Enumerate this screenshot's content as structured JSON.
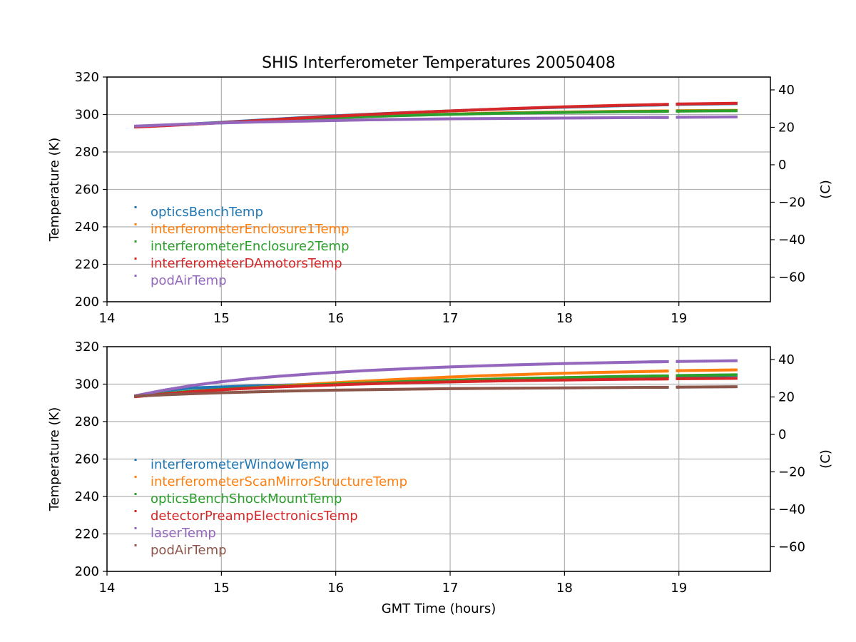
{
  "figure": {
    "title": "SHIS Interferometer Temperatures 20050408"
  },
  "chart_data": [
    {
      "type": "scatter",
      "title": "SHIS Interferometer Temperatures 20050408",
      "xlabel": "",
      "ylabel": "Temperature (K)",
      "y2label": "(C)",
      "xlim": [
        14,
        19.8
      ],
      "ylim": [
        200,
        320
      ],
      "y2lim": [
        -73.15,
        46.85
      ],
      "xticks": [
        14,
        15,
        16,
        17,
        18,
        19
      ],
      "yticks": [
        200,
        220,
        240,
        260,
        280,
        300,
        320
      ],
      "y2ticks": [
        -60,
        -40,
        -20,
        0,
        20,
        40
      ],
      "grid": true,
      "legend_position": "lower-left",
      "gap": [
        18.9,
        18.98
      ],
      "x": [
        14.25,
        14.5,
        14.75,
        15.0,
        15.25,
        15.5,
        15.75,
        16.0,
        16.25,
        16.5,
        16.75,
        17.0,
        17.25,
        17.5,
        17.75,
        18.0,
        18.25,
        18.5,
        18.75,
        18.9,
        19.0,
        19.25,
        19.5
      ],
      "series": [
        {
          "name": "opticsBenchTemp",
          "color": "#1f77b4",
          "values": [
            293.5,
            294.2,
            295.0,
            295.8,
            296.7,
            297.6,
            298.5,
            299.3,
            300.0,
            300.7,
            301.3,
            301.9,
            302.5,
            303.0,
            303.5,
            303.9,
            304.3,
            304.7,
            305.0,
            305.2,
            305.4,
            305.6,
            305.8
          ]
        },
        {
          "name": "interferometerEnclosure1Temp",
          "color": "#ff7f0e",
          "values": [
            293.5,
            294.2,
            294.9,
            295.6,
            296.3,
            297.0,
            297.7,
            298.3,
            298.9,
            299.4,
            299.8,
            300.2,
            300.6,
            300.9,
            301.1,
            301.3,
            301.5,
            301.7,
            301.8,
            301.9,
            302.0,
            302.1,
            302.2
          ]
        },
        {
          "name": "interferometerEnclosure2Temp",
          "color": "#2ca02c",
          "values": [
            293.5,
            294.2,
            294.9,
            295.6,
            296.3,
            297.0,
            297.6,
            298.2,
            298.8,
            299.3,
            299.7,
            300.1,
            300.4,
            300.7,
            300.9,
            301.1,
            301.3,
            301.5,
            301.6,
            301.7,
            301.8,
            301.9,
            302.0
          ]
        },
        {
          "name": "interferometerDAmotorsTemp",
          "color": "#d62728",
          "values": [
            293.3,
            294.0,
            294.8,
            295.6,
            296.5,
            297.4,
            298.3,
            299.1,
            299.9,
            300.6,
            301.3,
            301.9,
            302.5,
            303.1,
            303.6,
            304.1,
            304.5,
            304.9,
            305.2,
            305.4,
            305.6,
            305.8,
            306.0
          ]
        },
        {
          "name": "podAirTemp",
          "color": "#9467bd",
          "values": [
            293.8,
            294.4,
            295.0,
            295.5,
            295.9,
            296.2,
            296.5,
            296.8,
            297.1,
            297.3,
            297.5,
            297.7,
            297.8,
            297.9,
            298.0,
            298.1,
            298.2,
            298.3,
            298.4,
            298.4,
            298.5,
            298.6,
            298.7
          ]
        }
      ]
    },
    {
      "type": "scatter",
      "title": "",
      "xlabel": "GMT Time (hours)",
      "ylabel": "Temperature (K)",
      "y2label": "(C)",
      "xlim": [
        14,
        19.8
      ],
      "ylim": [
        200,
        320
      ],
      "y2lim": [
        -73.15,
        46.85
      ],
      "xticks": [
        14,
        15,
        16,
        17,
        18,
        19
      ],
      "yticks": [
        200,
        220,
        240,
        260,
        280,
        300,
        320
      ],
      "y2ticks": [
        -60,
        -40,
        -20,
        0,
        20,
        40
      ],
      "grid": true,
      "legend_position": "lower-left",
      "gap": [
        18.9,
        18.98
      ],
      "x": [
        14.25,
        14.5,
        14.75,
        15.0,
        15.25,
        15.5,
        15.75,
        16.0,
        16.25,
        16.5,
        16.75,
        17.0,
        17.25,
        17.5,
        17.75,
        18.0,
        18.25,
        18.5,
        18.75,
        18.9,
        19.0,
        19.25,
        19.5
      ],
      "series": [
        {
          "name": "interferometerWindowTemp",
          "color": "#1f77b4",
          "values": [
            293.5,
            296.5,
            298.0,
            298.5,
            299.0,
            299.4,
            299.8,
            300.2,
            300.6,
            301.0,
            301.4,
            301.8,
            302.1,
            302.4,
            302.7,
            303.0,
            303.3,
            303.6,
            303.9,
            304.0,
            304.2,
            304.4,
            304.7
          ]
        },
        {
          "name": "interferometerScanMirrorStructureTemp",
          "color": "#ff7f0e",
          "values": [
            293.5,
            294.8,
            296.0,
            297.0,
            298.0,
            299.0,
            299.9,
            300.8,
            301.6,
            302.4,
            303.1,
            303.8,
            304.4,
            304.9,
            305.4,
            305.8,
            306.2,
            306.5,
            306.8,
            307.0,
            307.2,
            307.4,
            307.6
          ]
        },
        {
          "name": "opticsBenchShockMountTemp",
          "color": "#2ca02c",
          "values": [
            293.5,
            295.0,
            296.3,
            297.2,
            298.0,
            298.7,
            299.4,
            300.0,
            300.6,
            301.1,
            301.6,
            302.1,
            302.5,
            302.9,
            303.2,
            303.5,
            303.8,
            304.1,
            304.3,
            304.4,
            304.6,
            304.8,
            305.0
          ]
        },
        {
          "name": "detectorPreampElectronicsTemp",
          "color": "#d62728",
          "values": [
            293.3,
            294.7,
            296.0,
            297.0,
            297.8,
            298.5,
            299.1,
            299.6,
            300.1,
            300.5,
            300.9,
            301.2,
            301.5,
            301.8,
            302.0,
            302.2,
            302.4,
            302.6,
            302.7,
            302.8,
            302.9,
            303.0,
            303.1
          ]
        },
        {
          "name": "laserTemp",
          "color": "#9467bd",
          "values": [
            293.8,
            296.8,
            299.3,
            301.3,
            302.9,
            304.2,
            305.3,
            306.3,
            307.2,
            307.9,
            308.6,
            309.2,
            309.7,
            310.2,
            310.6,
            311.0,
            311.3,
            311.6,
            311.9,
            312.0,
            312.1,
            312.3,
            312.5
          ]
        },
        {
          "name": "podAirTemp",
          "color": "#8c564b",
          "values": [
            293.6,
            294.3,
            294.9,
            295.4,
            295.8,
            296.2,
            296.5,
            296.8,
            297.0,
            297.2,
            297.4,
            297.6,
            297.7,
            297.8,
            297.9,
            298.0,
            298.1,
            298.2,
            298.3,
            298.3,
            298.4,
            298.5,
            298.6
          ]
        }
      ]
    }
  ]
}
